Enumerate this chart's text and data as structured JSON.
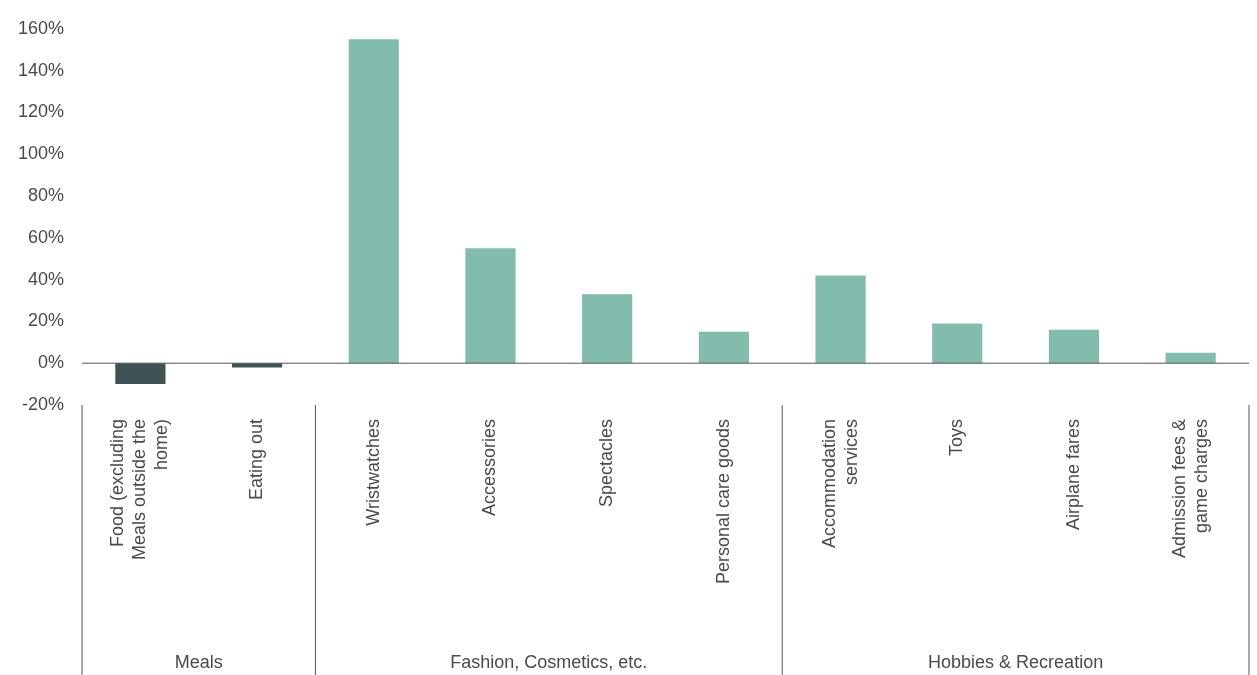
{
  "chart_data": {
    "type": "bar",
    "categories": [
      "Food (excluding Meals outside the home)",
      "Eating out",
      "Wristwatches",
      "Accessories",
      "Spectacles",
      "Personal care goods",
      "Accommodation services",
      "Toys",
      "Airplane fares",
      "Admission fees & game charges"
    ],
    "values": [
      -10,
      -2,
      155,
      55,
      33,
      15,
      42,
      19,
      16,
      5
    ],
    "colors": [
      "#3f5254",
      "#3f5254",
      "#82bcad",
      "#82bcad",
      "#82bcad",
      "#82bcad",
      "#82bcad",
      "#82bcad",
      "#82bcad",
      "#82bcad"
    ],
    "ylim": [
      -20,
      160
    ],
    "yticks": [
      {
        "value": -20,
        "label": "-20%"
      },
      {
        "value": 0,
        "label": "0%"
      },
      {
        "value": 20,
        "label": "20%"
      },
      {
        "value": 40,
        "label": "40%"
      },
      {
        "value": 60,
        "label": "60%"
      },
      {
        "value": 80,
        "label": "80%"
      },
      {
        "value": 100,
        "label": "100%"
      },
      {
        "value": 120,
        "label": "120%"
      },
      {
        "value": 140,
        "label": "140%"
      },
      {
        "value": 160,
        "label": "160%"
      }
    ],
    "annotations": [
      "Meals",
      "Fashion, Cosmetics, etc.",
      "Hobbies & Recreation"
    ],
    "legend": false
  }
}
